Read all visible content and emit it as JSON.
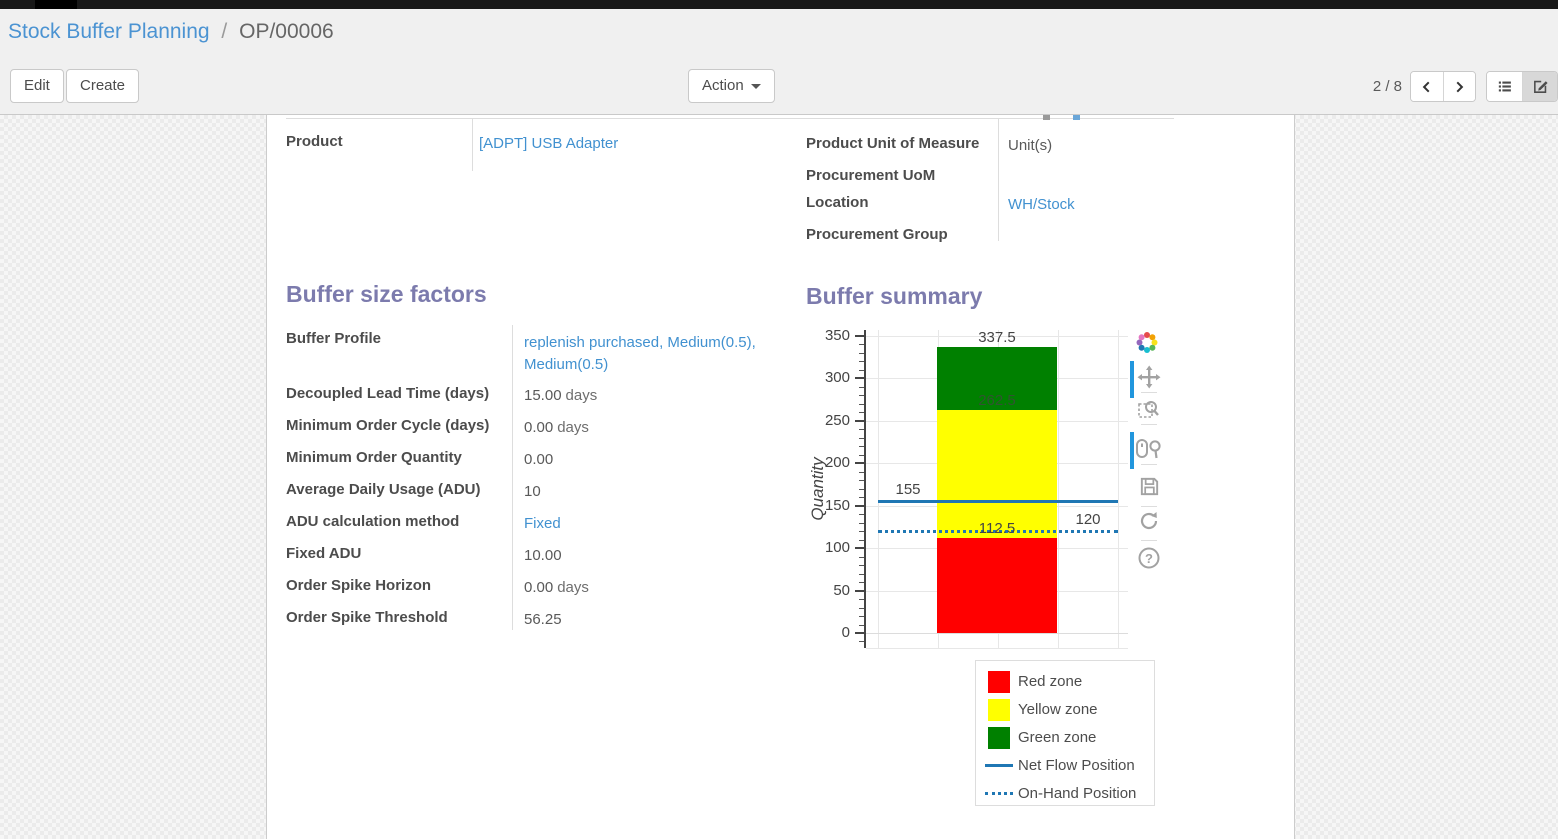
{
  "breadcrumb": {
    "parent": "Stock Buffer Planning",
    "separator": "/",
    "current": "OP/00006"
  },
  "toolbar": {
    "edit_label": "Edit",
    "create_label": "Create",
    "action_label": "Action",
    "pager": "2 / 8"
  },
  "info_panel": {
    "product": {
      "label": "Product",
      "value": "[ADPT] USB Adapter"
    },
    "right_rows": [
      {
        "label": "Product Unit of Measure",
        "value": "Unit(s)"
      },
      {
        "label": "Procurement UoM",
        "value": ""
      },
      {
        "label": "Location",
        "value": "WH/Stock"
      },
      {
        "label": "Procurement Group",
        "value": ""
      }
    ]
  },
  "buffer_factors": {
    "title": "Buffer size factors",
    "rows": [
      {
        "label": "Buffer Profile",
        "value": "replenish purchased, Medium(0.5), Medium(0.5)"
      },
      {
        "label": "Decoupled Lead Time (days)",
        "value": "15.00",
        "suffix": "days"
      },
      {
        "label": "Minimum Order Cycle (days)",
        "value": "0.00",
        "suffix": "days"
      },
      {
        "label": "Minimum Order Quantity",
        "value": "0.00"
      },
      {
        "label": "Average Daily Usage (ADU)",
        "value": "10"
      },
      {
        "label": "ADU calculation method",
        "value": "Fixed"
      },
      {
        "label": "Fixed ADU",
        "value": "10.00"
      },
      {
        "label": "Order Spike Horizon",
        "value": "0.00",
        "suffix": "days"
      },
      {
        "label": "Order Spike Threshold",
        "value": "56.25"
      }
    ]
  },
  "buffer_summary": {
    "title": "Buffer summary"
  },
  "chart_data": {
    "type": "bar",
    "title": "Buffer summary",
    "ylabel": "Quantity",
    "ylim": [
      0,
      350
    ],
    "yticks": [
      0,
      50,
      100,
      150,
      200,
      250,
      300,
      350
    ],
    "grid": true,
    "series": [
      {
        "name": "Red zone",
        "from": 0,
        "to": 112.5,
        "value": 112.5,
        "color": "#ff0000"
      },
      {
        "name": "Yellow zone",
        "from": 112.5,
        "to": 262.5,
        "value": 150,
        "color": "#ffff00"
      },
      {
        "name": "Green zone",
        "from": 262.5,
        "to": 337.5,
        "value": 75,
        "color": "#008000"
      }
    ],
    "bar_top": 337.5,
    "boundary_labels": [
      112.5,
      262.5,
      337.5
    ],
    "lines": [
      {
        "name": "Net Flow Position",
        "value": 155,
        "style": "solid",
        "color": "#1f77b4"
      },
      {
        "name": "On-Hand Position",
        "value": 120,
        "style": "dotted",
        "color": "#1f77b4"
      }
    ],
    "legend_position": "bottom-right",
    "legend_items": [
      {
        "label": "Red zone",
        "swatch": "square",
        "color": "#ff0000"
      },
      {
        "label": "Yellow zone",
        "swatch": "square",
        "color": "#ffff00"
      },
      {
        "label": "Green zone",
        "swatch": "square",
        "color": "#008000"
      },
      {
        "label": "Net Flow Position",
        "swatch": "line",
        "color": "#1f77b4"
      },
      {
        "label": "On-Hand Position",
        "swatch": "dotted",
        "color": "#1f77b4"
      }
    ]
  },
  "icons": {
    "modebar": [
      "plotly-logo",
      "pan",
      "zoom-box",
      "zoom-in-out",
      "save",
      "reset-scale",
      "help"
    ]
  }
}
